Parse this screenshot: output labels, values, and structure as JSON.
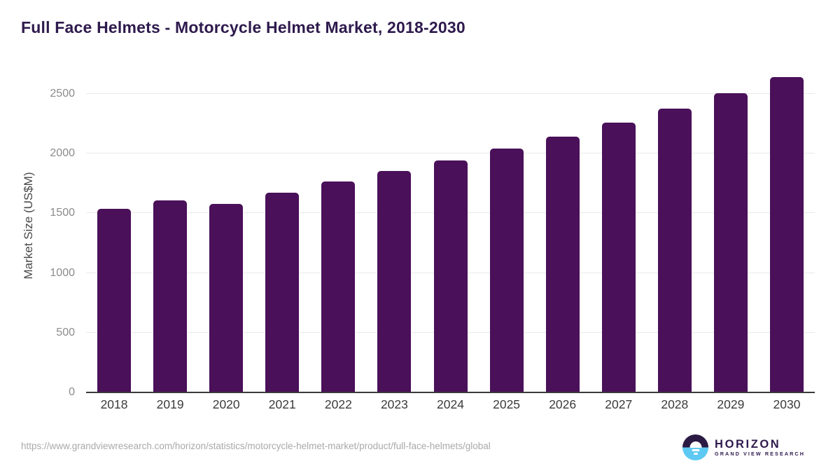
{
  "header": {
    "title": "Full Face Helmets - Motorcycle Helmet Market, 2018-2030"
  },
  "chart_data": {
    "type": "bar",
    "title": "Full Face Helmets - Motorcycle Helmet Market, 2018-2030",
    "categories": [
      "2018",
      "2019",
      "2020",
      "2021",
      "2022",
      "2023",
      "2024",
      "2025",
      "2026",
      "2027",
      "2028",
      "2029",
      "2030"
    ],
    "values": [
      1535,
      1610,
      1580,
      1675,
      1765,
      1855,
      1945,
      2040,
      2145,
      2260,
      2375,
      2505,
      2640
    ],
    "xlabel": "",
    "ylabel": "Market Size (US$M)",
    "ylim": [
      0,
      2700
    ],
    "yticks": [
      0,
      500,
      1000,
      1500,
      2000,
      2500
    ],
    "grid": "horizontal",
    "legend": "none",
    "bar_color": "#4a1059"
  },
  "footer": {
    "source_url": "https://www.grandviewresearch.com/horizon/statistics/motorcycle-helmet-market/product/full-face-helmets/global",
    "logo": {
      "name": "HORIZON",
      "tagline": "GRAND VIEW RESEARCH",
      "icon": "horizon-sun-icon"
    }
  },
  "colors": {
    "title": "#2e1a4d",
    "bar": "#4a1059",
    "gridline": "#e9e9e9",
    "axis_line": "#3a3a3a",
    "tick_label": "#8c8c8c",
    "x_tick_label": "#3b3b3b",
    "axis_label": "#4a4a4a",
    "url_text": "#a9a9a9",
    "logo_dark": "#2b1b44",
    "logo_blue": "#5ec9f2"
  }
}
